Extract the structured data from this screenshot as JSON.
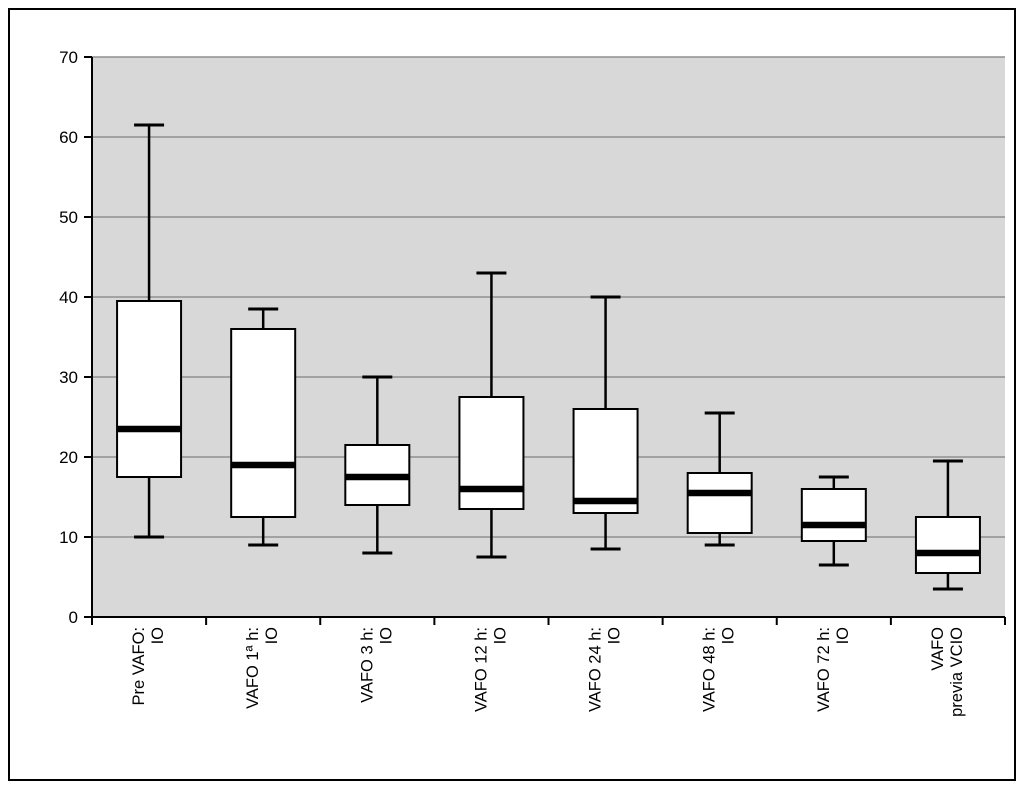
{
  "chart_data": {
    "type": "boxplot",
    "title": "",
    "xlabel": "",
    "ylabel": "",
    "ylim": [
      0,
      70
    ],
    "yticks": [
      0,
      10,
      20,
      30,
      40,
      50,
      60,
      70
    ],
    "grid": true,
    "legend": "none",
    "categories": [
      {
        "lines": [
          "Pre VAFO:",
          "IO"
        ]
      },
      {
        "lines": [
          "VAFO 1ª h:",
          "IO"
        ]
      },
      {
        "lines": [
          "VAFO 3 h:",
          "IO"
        ]
      },
      {
        "lines": [
          "VAFO 12 h:",
          "IO"
        ]
      },
      {
        "lines": [
          "VAFO 24 h:",
          "IO"
        ]
      },
      {
        "lines": [
          "VAFO 48 h:",
          "IO"
        ]
      },
      {
        "lines": [
          "VAFO 72 h:",
          "IO"
        ]
      },
      {
        "lines": [
          "VAFO",
          "previa VCIO"
        ]
      }
    ],
    "boxes": [
      {
        "min": 10,
        "q1": 17.5,
        "median": 23.5,
        "q3": 39.5,
        "max": 61.5
      },
      {
        "min": 9,
        "q1": 12.5,
        "median": 19,
        "q3": 36,
        "max": 38.5
      },
      {
        "min": 8,
        "q1": 14,
        "median": 17.5,
        "q3": 21.5,
        "max": 30
      },
      {
        "min": 7.5,
        "q1": 13.5,
        "median": 16,
        "q3": 27.5,
        "max": 43
      },
      {
        "min": 8.5,
        "q1": 13,
        "median": 14.5,
        "q3": 26,
        "max": 40
      },
      {
        "min": 9,
        "q1": 10.5,
        "median": 15.5,
        "q3": 18,
        "max": 25.5
      },
      {
        "min": 6.5,
        "q1": 9.5,
        "median": 11.5,
        "q3": 16,
        "max": 17.5
      },
      {
        "min": 3.5,
        "q1": 5.5,
        "median": 8,
        "q3": 12.5,
        "max": 19.5
      }
    ],
    "colors": {
      "box_fill": "#ffffff",
      "line": "#000000",
      "grid": "#8f8f8f",
      "plot_bg": "#d8d8d8",
      "frame": "#000000",
      "page_bg": "#ffffff"
    }
  }
}
